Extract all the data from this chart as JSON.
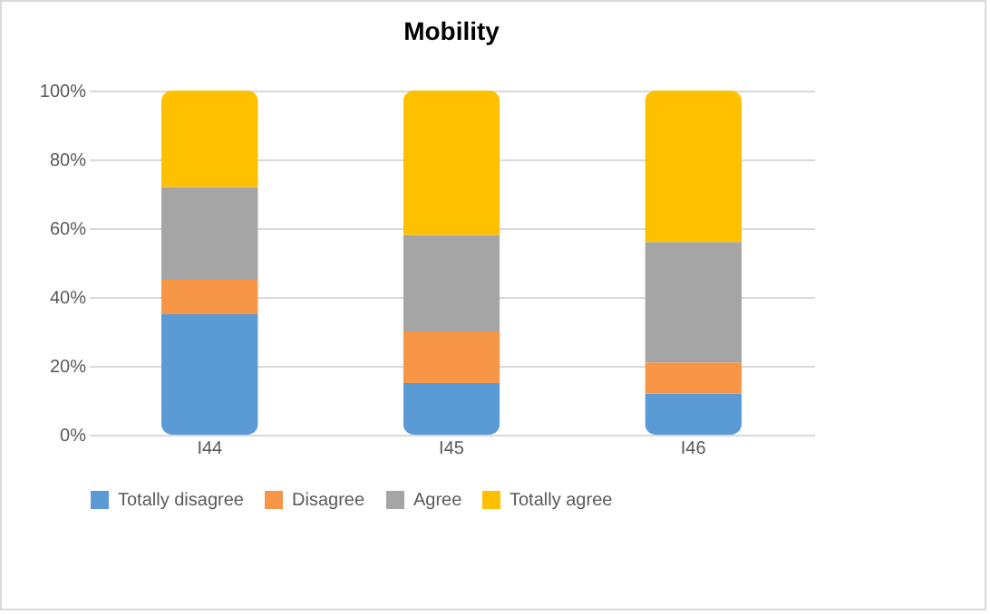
{
  "chart_data": {
    "type": "bar",
    "title": "Mobility",
    "categories": [
      "I44",
      "I45",
      "I46"
    ],
    "stacked": true,
    "series": [
      {
        "name": "Totally disagree",
        "color": "#5b9bd5",
        "values": [
          35,
          15,
          12
        ]
      },
      {
        "name": "Disagree",
        "color": "#f79646",
        "values": [
          10,
          15,
          9
        ]
      },
      {
        "name": "Agree",
        "color": "#a5a5a5",
        "values": [
          27,
          28,
          35
        ]
      },
      {
        "name": "Totally agree",
        "color": "#ffc000",
        "values": [
          28,
          42,
          44
        ]
      }
    ],
    "ylim": [
      0,
      100
    ],
    "yticks": [
      {
        "value": 0,
        "label": "0%"
      },
      {
        "value": 20,
        "label": "20%"
      },
      {
        "value": 40,
        "label": "40%"
      },
      {
        "value": 60,
        "label": "60%"
      },
      {
        "value": 80,
        "label": "80%"
      },
      {
        "value": 100,
        "label": "100%"
      }
    ],
    "grid": "y",
    "legend": "bottom"
  }
}
